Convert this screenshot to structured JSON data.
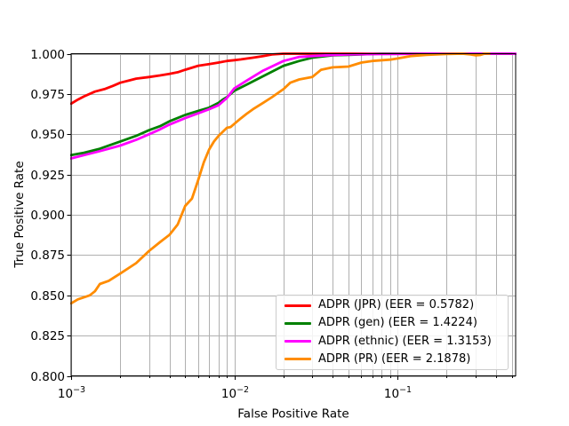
{
  "chart_data": {
    "type": "line",
    "title": "",
    "xlabel": "False Positive Rate",
    "ylabel": "True Positive Rate",
    "x_scale": "log",
    "xlim": [
      0.001,
      0.529
    ],
    "ylim": [
      0.8,
      1.0
    ],
    "grid": "both-x-major-y",
    "grid_color": "#b0b0b0",
    "legend_position": "lower right",
    "x_ticks": [
      {
        "value": 0.001,
        "base": "10",
        "exp": "−3"
      },
      {
        "value": 0.01,
        "base": "10",
        "exp": "−2"
      },
      {
        "value": 0.1,
        "base": "10",
        "exp": "−1"
      }
    ],
    "y_ticks": [
      {
        "value": 1.0,
        "label": "1.000"
      },
      {
        "value": 0.975,
        "label": "0.975"
      },
      {
        "value": 0.95,
        "label": "0.950"
      },
      {
        "value": 0.925,
        "label": "0.925"
      },
      {
        "value": 0.9,
        "label": "0.900"
      },
      {
        "value": 0.875,
        "label": "0.875"
      },
      {
        "value": 0.85,
        "label": "0.850"
      },
      {
        "value": 0.825,
        "label": "0.825"
      },
      {
        "value": 0.8,
        "label": "0.800"
      }
    ],
    "series": [
      {
        "name": "ADPR (JPR) (EER = 0.5782)",
        "color": "#ff0000",
        "x": [
          0.001,
          0.0011,
          0.0012,
          0.0014,
          0.0016,
          0.0018,
          0.002,
          0.0023,
          0.0025,
          0.003,
          0.0035,
          0.004,
          0.0045,
          0.005,
          0.006,
          0.007,
          0.008,
          0.009,
          0.01,
          0.011,
          0.012,
          0.013,
          0.015,
          0.017,
          0.02,
          0.03,
          0.05,
          0.1,
          0.2,
          0.3,
          0.5
        ],
        "y": [
          0.969,
          0.9715,
          0.9735,
          0.9765,
          0.978,
          0.98,
          0.982,
          0.9835,
          0.9845,
          0.9855,
          0.9865,
          0.9875,
          0.9885,
          0.99,
          0.9925,
          0.9935,
          0.9945,
          0.9955,
          0.996,
          0.9965,
          0.997,
          0.9975,
          0.9985,
          0.9995,
          1.0,
          1.0,
          1.0,
          1.0,
          1.0,
          1.0,
          1.0
        ]
      },
      {
        "name": "ADPR (gen) (EER = 1.4224)",
        "color": "#008000",
        "x": [
          0.001,
          0.0012,
          0.0015,
          0.002,
          0.0025,
          0.003,
          0.0035,
          0.004,
          0.005,
          0.006,
          0.007,
          0.008,
          0.0085,
          0.009,
          0.01,
          0.012,
          0.015,
          0.02,
          0.025,
          0.03,
          0.04,
          0.05,
          0.06,
          0.08,
          0.1,
          0.2,
          0.5
        ],
        "y": [
          0.937,
          0.9385,
          0.941,
          0.9455,
          0.949,
          0.9525,
          0.955,
          0.958,
          0.962,
          0.9645,
          0.9665,
          0.9695,
          0.9715,
          0.973,
          0.977,
          0.981,
          0.986,
          0.9925,
          0.9955,
          0.9975,
          0.999,
          0.9993,
          0.9995,
          1.0,
          1.0,
          1.0,
          1.0
        ]
      },
      {
        "name": "ADPR (ethnic) (EER = 1.3153)",
        "color": "#ff00ff",
        "x": [
          0.001,
          0.0012,
          0.0015,
          0.002,
          0.0025,
          0.003,
          0.0035,
          0.004,
          0.005,
          0.006,
          0.007,
          0.008,
          0.009,
          0.01,
          0.012,
          0.015,
          0.02,
          0.025,
          0.03,
          0.04,
          0.05,
          0.07,
          0.1,
          0.15,
          0.2,
          0.3,
          0.4,
          0.529
        ],
        "y": [
          0.935,
          0.937,
          0.9395,
          0.943,
          0.9465,
          0.95,
          0.953,
          0.956,
          0.96,
          0.963,
          0.9655,
          0.968,
          0.9725,
          0.9785,
          0.9835,
          0.9895,
          0.9955,
          0.998,
          0.9985,
          0.9992,
          0.9995,
          0.9997,
          0.9998,
          1.0,
          1.0,
          1.0,
          1.0,
          1.0
        ]
      },
      {
        "name": "ADPR (PR) (EER = 2.1878)",
        "color": "#ff8c00",
        "x": [
          0.001,
          0.0011,
          0.0013,
          0.0014,
          0.0015,
          0.0017,
          0.002,
          0.0025,
          0.003,
          0.0035,
          0.004,
          0.0045,
          0.005,
          0.0055,
          0.006,
          0.0065,
          0.007,
          0.0075,
          0.008,
          0.009,
          0.0095,
          0.01,
          0.011,
          0.012,
          0.013,
          0.015,
          0.017,
          0.02,
          0.022,
          0.025,
          0.03,
          0.034,
          0.04,
          0.05,
          0.06,
          0.07,
          0.09,
          0.1,
          0.12,
          0.15,
          0.2,
          0.25,
          0.28,
          0.3,
          0.32,
          0.34,
          0.365
        ],
        "y": [
          0.845,
          0.8475,
          0.85,
          0.8525,
          0.857,
          0.859,
          0.8635,
          0.87,
          0.8775,
          0.883,
          0.8875,
          0.894,
          0.9055,
          0.91,
          0.9215,
          0.9325,
          0.9405,
          0.9455,
          0.949,
          0.954,
          0.9545,
          0.9565,
          0.96,
          0.963,
          0.9655,
          0.9695,
          0.973,
          0.978,
          0.982,
          0.984,
          0.9855,
          0.99,
          0.9915,
          0.992,
          0.9945,
          0.9955,
          0.9963,
          0.997,
          0.9985,
          0.9993,
          0.9998,
          1.0,
          0.9995,
          0.999,
          0.9992,
          1.0,
          1.0
        ]
      }
    ]
  }
}
